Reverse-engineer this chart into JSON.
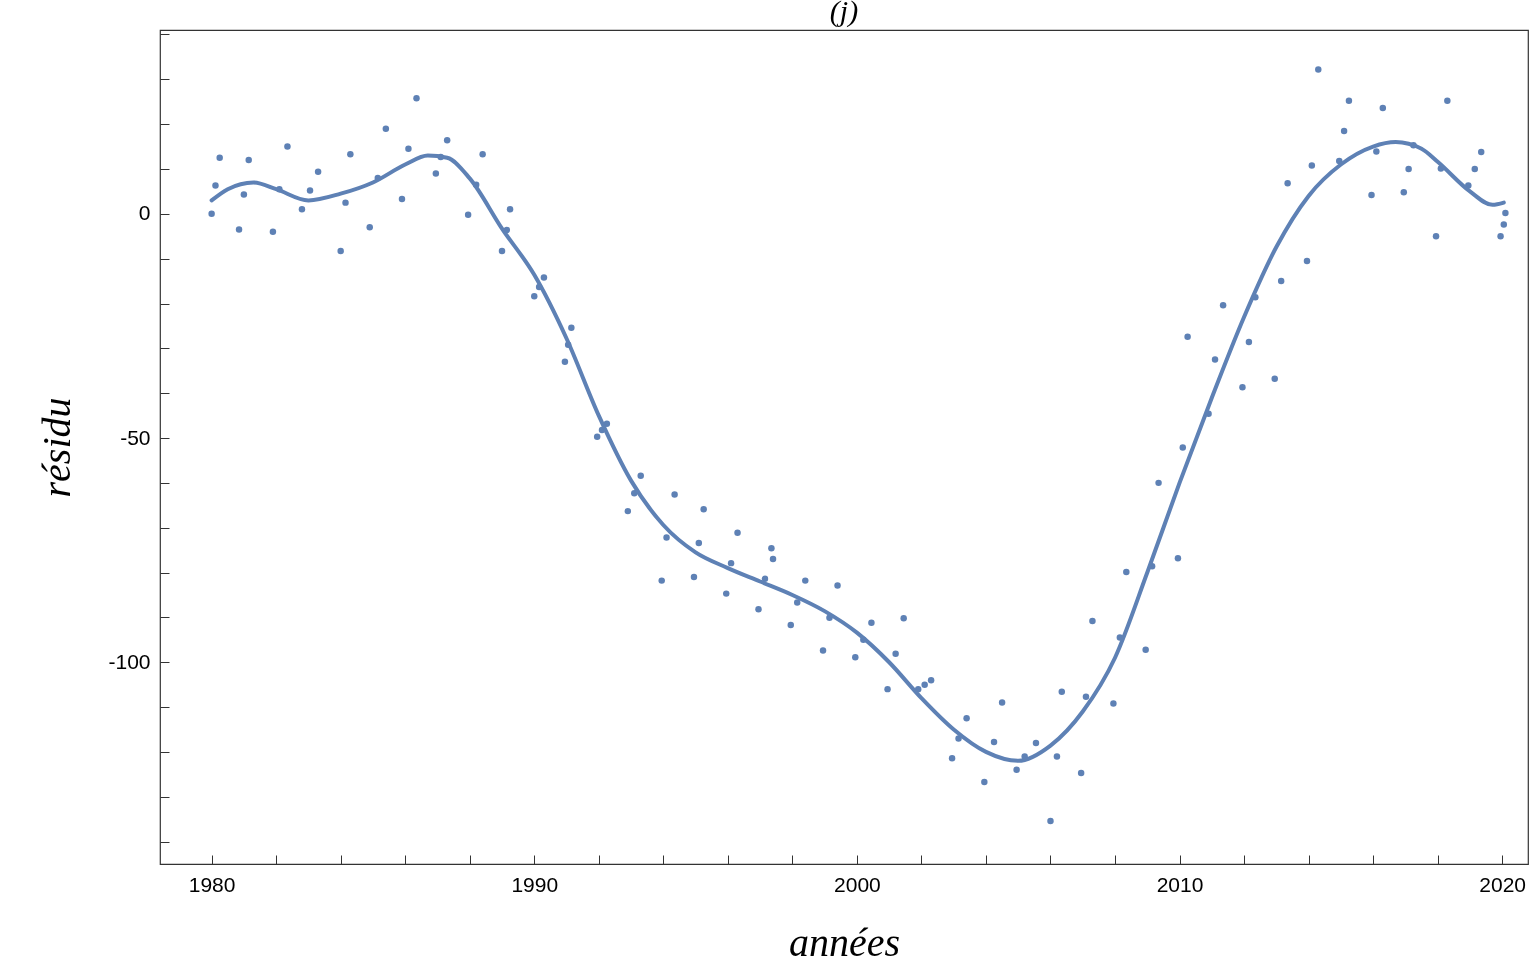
{
  "chart_data": {
    "type": "scatter",
    "title": "(j)",
    "xlabel": "années",
    "ylabel": "résidu",
    "xlim": [
      1978.4,
      2020.8
    ],
    "ylim": [
      -145,
      41
    ],
    "xticks": [
      1980,
      {
        "value": 1982,
        "label": null
      },
      {
        "value": 1984,
        "label": null
      },
      {
        "value": 1986,
        "label": null
      },
      {
        "value": 1988,
        "label": null
      },
      1990,
      {
        "value": 1992,
        "label": null
      },
      {
        "value": 1994,
        "label": null
      },
      {
        "value": 1996,
        "label": null
      },
      {
        "value": 1998,
        "label": null
      },
      2000,
      {
        "value": 2002,
        "label": null
      },
      {
        "value": 2004,
        "label": null
      },
      {
        "value": 2006,
        "label": null
      },
      {
        "value": 2008,
        "label": null
      },
      2010,
      {
        "value": 2012,
        "label": null
      },
      {
        "value": 2014,
        "label": null
      },
      {
        "value": 2016,
        "label": null
      },
      {
        "value": 2018,
        "label": null
      },
      2020
    ],
    "yticks": [
      {
        "value": -140,
        "label": null
      },
      {
        "value": -130,
        "label": null
      },
      {
        "value": -120,
        "label": null
      },
      {
        "value": -110,
        "label": null
      },
      -100,
      {
        "value": -90,
        "label": null
      },
      {
        "value": -80,
        "label": null
      },
      {
        "value": -70,
        "label": null
      },
      {
        "value": -60,
        "label": null
      },
      -50,
      {
        "value": -40,
        "label": null
      },
      {
        "value": -30,
        "label": null
      },
      {
        "value": -20,
        "label": null
      },
      {
        "value": -10,
        "label": null
      },
      0,
      {
        "value": 10,
        "label": null
      },
      {
        "value": 20,
        "label": null
      },
      {
        "value": 30,
        "label": null
      },
      {
        "value": 40,
        "label": null
      }
    ],
    "grid": false,
    "series": [
      {
        "marker": "circle",
        "color": "#5e81b5",
        "x": [
          1980.0,
          1980.12,
          1980.25,
          1980.85,
          1981.0,
          1981.15,
          1981.9,
          1982.1,
          1982.35,
          1982.8,
          1983.05,
          1983.3,
          1984.0,
          1984.15,
          1984.3,
          1984.9,
          1985.15,
          1985.4,
          1985.9,
          1986.1,
          1986.35,
          1986.95,
          1987.1,
          1987.3,
          1987.95,
          1988.2,
          1988.4,
          1989.0,
          1989.15,
          1989.25,
          1990.0,
          1990.15,
          1990.3,
          1990.95,
          1991.05,
          1991.15,
          1991.95,
          1992.1,
          1992.25,
          1992.9,
          1993.1,
          1993.3,
          1993.95,
          1994.1,
          1994.35,
          1994.95,
          1995.1,
          1995.25,
          1995.95,
          1996.1,
          1996.3,
          1996.95,
          1997.15,
          1997.35,
          1997.4,
          1997.95,
          1998.15,
          1998.4,
          1998.95,
          1999.15,
          1999.4,
          1999.95,
          2000.2,
          2000.45,
          2000.95,
          2001.2,
          2001.45,
          2001.9,
          2002.1,
          2002.3,
          2002.95,
          2003.15,
          2003.4,
          2003.95,
          2004.25,
          2004.5,
          2004.95,
          2005.2,
          2005.55,
          2006.0,
          2006.2,
          2006.35,
          2006.95,
          2007.1,
          2007.3,
          2007.95,
          2008.15,
          2008.35,
          2008.95,
          2009.15,
          2009.35,
          2009.95,
          2010.1,
          2010.25,
          2010.9,
          2011.1,
          2011.35,
          2011.95,
          2012.15,
          2012.35,
          2012.95,
          2013.15,
          2013.35,
          2013.95,
          2014.1,
          2014.3,
          2014.95,
          2015.1,
          2015.25,
          2015.95,
          2016.1,
          2016.3,
          2016.95,
          2017.1,
          2017.25,
          2017.95,
          2018.1,
          2018.3,
          2018.95,
          2019.15,
          2019.35,
          2019.95,
          2020.05,
          2020.1
        ],
        "values": [
          0,
          6.3,
          12.5,
          -3.5,
          4.3,
          12,
          -4,
          5.5,
          15,
          1,
          5.2,
          9.4,
          -8.3,
          2.5,
          13.3,
          -3,
          8,
          19,
          3.3,
          14.5,
          25.8,
          9,
          12.7,
          16.4,
          -0.2,
          6.5,
          13.3,
          -8.3,
          -3.6,
          1,
          -18.4,
          -16.3,
          -14.2,
          -33,
          -29.2,
          -25.4,
          -49.7,
          -48.2,
          -46.8,
          -66.3,
          -62.3,
          -58.4,
          -81.8,
          -72.2,
          -62.6,
          -81,
          -73.4,
          -65.9,
          -84.7,
          -77.9,
          -71.1,
          -88.2,
          -81.4,
          -74.6,
          -77,
          -91.7,
          -86.7,
          -81.8,
          -97.4,
          -90.1,
          -82.9,
          -98.9,
          -95,
          -91.2,
          -106,
          -98.1,
          -90.2,
          -106,
          -105,
          -104,
          -121.4,
          -117,
          -112.5,
          -126.7,
          -117.8,
          -109,
          -124,
          -121,
          -118,
          -135.4,
          -121,
          -106.6,
          -124.7,
          -107.7,
          -90.8,
          -109.2,
          -94.5,
          -79.9,
          -97.2,
          -78.6,
          -60,
          -76.8,
          -52.1,
          -27.4,
          -44.6,
          -32.5,
          -20.4,
          -38.7,
          -28.6,
          -18.6,
          -36.8,
          -15,
          6.8,
          -10.5,
          10.8,
          32.2,
          11.8,
          18.5,
          25.2,
          4.2,
          13.9,
          23.6,
          4.8,
          10,
          15.3,
          -5,
          10.1,
          25.2,
          6.3,
          10,
          13.8,
          -5,
          -2.4,
          0.2
        ]
      },
      {
        "type": "line",
        "color": "#5e81b5",
        "x": [
          1980.0,
          1980.5,
          1981.3,
          1982.0,
          1983.0,
          1984.0,
          1985.0,
          1986.0,
          1986.7,
          1987.3,
          1988.0,
          1989.0,
          1990.0,
          1991.0,
          1992.0,
          1993.0,
          1994.0,
          1995.0,
          1996.0,
          1997.0,
          1998.0,
          1999.0,
          2000.0,
          2001.0,
          2002.0,
          2003.0,
          2004.0,
          2005.0,
          2006.0,
          2007.0,
          2008.0,
          2009.0,
          2010.0,
          2011.0,
          2012.0,
          2013.0,
          2014.0,
          2015.0,
          2016.0,
          2016.7,
          2017.5,
          2018.0,
          2019.0,
          2019.7,
          2020.05
        ],
        "values": [
          3,
          5.5,
          7,
          5.5,
          3,
          4.5,
          7,
          11,
          13,
          12.5,
          7.9,
          -3.3,
          -13.6,
          -27.8,
          -45,
          -59.5,
          -69.4,
          -75.5,
          -79,
          -82,
          -85,
          -88.6,
          -93.4,
          -100,
          -108,
          -115,
          -120,
          -122,
          -118.6,
          -111,
          -99,
          -80,
          -60,
          -41,
          -23,
          -7.4,
          4,
          11,
          15,
          16,
          14.5,
          11.6,
          5,
          2,
          2.5
        ]
      }
    ]
  }
}
